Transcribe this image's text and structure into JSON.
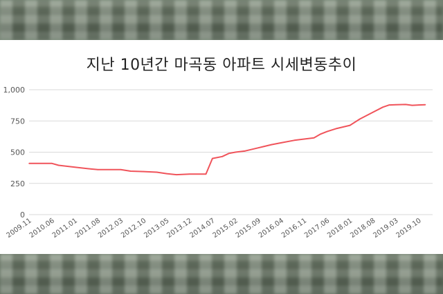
{
  "chart_data": {
    "type": "line",
    "title": "지난 10년간 마곡동 아파트 시세변동추이",
    "ylim": [
      0,
      1000
    ],
    "yticks": [
      0,
      250,
      500,
      750,
      1000
    ],
    "ytick_labels": [
      "0",
      "250",
      "500",
      "750",
      "1,000"
    ],
    "xtick_labels": [
      "2009.11",
      "2010.06",
      "2011.01",
      "2011.08",
      "2012.03",
      "2012.10",
      "2013.05",
      "2013.12",
      "2014.07",
      "2015.02",
      "2015.09",
      "2016.04",
      "2016.11",
      "2017.06",
      "2018.01",
      "2018.08",
      "2019.03",
      "2019.10"
    ],
    "grid": true,
    "line_color": "#f0535a",
    "series": [
      {
        "points": [
          [
            "2009.11",
            410
          ],
          [
            "2010.06",
            410
          ],
          [
            "2010.08",
            395
          ],
          [
            "2011.01",
            380
          ],
          [
            "2011.06",
            365
          ],
          [
            "2011.08",
            360
          ],
          [
            "2012.03",
            360
          ],
          [
            "2012.06",
            348
          ],
          [
            "2012.10",
            345
          ],
          [
            "2013.02",
            340
          ],
          [
            "2013.05",
            328
          ],
          [
            "2013.08",
            320
          ],
          [
            "2013.12",
            325
          ],
          [
            "2014.05",
            325
          ],
          [
            "2014.07",
            450
          ],
          [
            "2014.10",
            465
          ],
          [
            "2014.12",
            490
          ],
          [
            "2015.02",
            500
          ],
          [
            "2015.05",
            510
          ],
          [
            "2015.09",
            535
          ],
          [
            "2016.01",
            560
          ],
          [
            "2016.04",
            575
          ],
          [
            "2016.08",
            595
          ],
          [
            "2016.11",
            605
          ],
          [
            "2017.02",
            615
          ],
          [
            "2017.04",
            645
          ],
          [
            "2017.06",
            665
          ],
          [
            "2017.09",
            690
          ],
          [
            "2018.01",
            715
          ],
          [
            "2018.04",
            765
          ],
          [
            "2018.08",
            820
          ],
          [
            "2018.11",
            860
          ],
          [
            "2019.01",
            878
          ],
          [
            "2019.03",
            880
          ],
          [
            "2019.06",
            882
          ],
          [
            "2019.08",
            875
          ],
          [
            "2019.10",
            878
          ],
          [
            "2019.12",
            880
          ]
        ]
      }
    ]
  }
}
